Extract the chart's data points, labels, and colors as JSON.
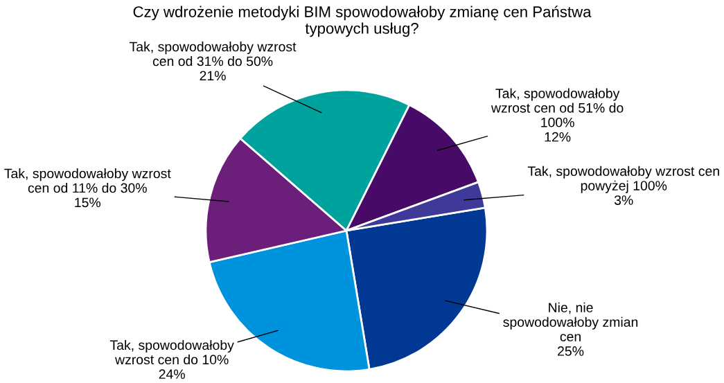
{
  "chart_data": {
    "type": "pie",
    "title": "Czy wdrożenie metodyki BIM spowodowałoby zmianę cen Państwa\ntypowych usług?",
    "categories": [
      "Nie, nie\nspowodowałoby zmian\ncen",
      "Tak, spowodowałoby\nwzrost cen do 10%",
      "Tak, spowodowałoby wzrost\ncen od 11% do 30%",
      "Tak, spowodowałoby wzrost\ncen od 31% do 50%",
      "Tak, spowodowałoby\nwzrost cen od 51% do\n100%",
      "Tak, spowodowałoby wzrost cen\npowyżej 100%"
    ],
    "values": [
      25,
      24,
      15,
      21,
      12,
      3
    ],
    "colors": [
      "#003893",
      "#0093dd",
      "#6b1f7a",
      "#00a29e",
      "#470a66",
      "#3f3a9a"
    ],
    "value_labels": [
      "25%",
      "24%",
      "15%",
      "21%",
      "12%",
      "3%"
    ],
    "legend": false
  }
}
